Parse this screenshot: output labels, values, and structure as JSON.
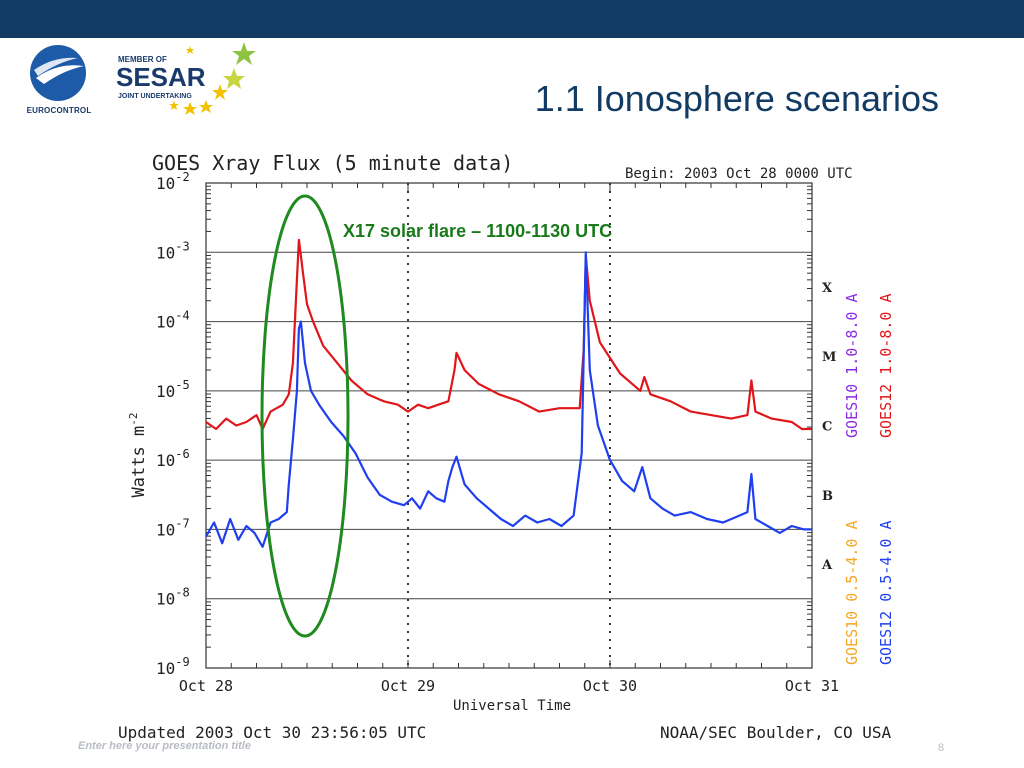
{
  "slide": {
    "title": "1.1 Ionosphere scenarios",
    "footer_left": "Enter here your presentation title",
    "page_number": "8"
  },
  "logos": {
    "eurocontrol": "EUROCONTROL",
    "sesar_member": "MEMBER OF",
    "sesar_name": "SESAR",
    "sesar_sub": "JOINT UNDERTAKING"
  },
  "colors": {
    "header_bar": "#123b63",
    "title": "#123b63",
    "goes12_long": "#e0161b",
    "goes12_short": "#1f3ff0",
    "goes10_long": "#8a2be2",
    "goes10_short": "#f5a623",
    "annotation": "#1a7a1a"
  },
  "chart_data": {
    "type": "line",
    "title": "GOES Xray Flux (5 minute data)",
    "begin_label": "Begin:  2003 Oct 28 0000 UTC",
    "xlabel": "Universal Time",
    "ylabel": "Watts m",
    "ylabel_exp": "-2",
    "x_ticks": [
      "Oct 28",
      "Oct 29",
      "Oct 30",
      "Oct 31"
    ],
    "xlim": [
      0,
      3
    ],
    "ylim_exp": [
      -9,
      -2
    ],
    "y_ticks": [
      {
        "base": "10",
        "exp": "-2"
      },
      {
        "base": "10",
        "exp": "-3"
      },
      {
        "base": "10",
        "exp": "-4"
      },
      {
        "base": "10",
        "exp": "-5"
      },
      {
        "base": "10",
        "exp": "-6"
      },
      {
        "base": "10",
        "exp": "-7"
      },
      {
        "base": "10",
        "exp": "-8"
      },
      {
        "base": "10",
        "exp": "-9"
      }
    ],
    "class_labels": [
      {
        "label": "X",
        "value_exp": -3.5
      },
      {
        "label": "M",
        "value_exp": -4.5
      },
      {
        "label": "C",
        "value_exp": -5.5
      },
      {
        "label": "B",
        "value_exp": -6.5
      },
      {
        "label": "A",
        "value_exp": -7.5
      }
    ],
    "legend_right": [
      "GOES10 1.0-8.0 A",
      "GOES12 1.0-8.0 A"
    ],
    "legend_left_bottom": [
      "GOES10 0.5-4.0 A",
      "GOES12 0.5-4.0 A"
    ],
    "annotation": "X17 solar flare – 1100-1130 UTC",
    "updated": "Updated 2003 Oct 30 23:56:05 UTC",
    "source": "NOAA/SEC Boulder, CO USA",
    "series": [
      {
        "name": "GOES12 1.0-8.0 A",
        "log_values": [
          [
            0.0,
            -5.45
          ],
          [
            0.05,
            -5.55
          ],
          [
            0.1,
            -5.4
          ],
          [
            0.15,
            -5.5
          ],
          [
            0.2,
            -5.45
          ],
          [
            0.25,
            -5.35
          ],
          [
            0.28,
            -5.55
          ],
          [
            0.32,
            -5.3
          ],
          [
            0.38,
            -5.2
          ],
          [
            0.41,
            -5.05
          ],
          [
            0.43,
            -4.6
          ],
          [
            0.44,
            -4.0
          ],
          [
            0.45,
            -3.4
          ],
          [
            0.46,
            -2.82
          ],
          [
            0.48,
            -3.3
          ],
          [
            0.5,
            -3.75
          ],
          [
            0.53,
            -4.0
          ],
          [
            0.58,
            -4.35
          ],
          [
            0.65,
            -4.6
          ],
          [
            0.72,
            -4.85
          ],
          [
            0.8,
            -5.05
          ],
          [
            0.88,
            -5.15
          ],
          [
            0.95,
            -5.2
          ],
          [
            1.0,
            -5.3
          ],
          [
            1.05,
            -5.2
          ],
          [
            1.1,
            -5.25
          ],
          [
            1.15,
            -5.2
          ],
          [
            1.2,
            -5.15
          ],
          [
            1.23,
            -4.7
          ],
          [
            1.24,
            -4.45
          ],
          [
            1.28,
            -4.7
          ],
          [
            1.35,
            -4.9
          ],
          [
            1.45,
            -5.05
          ],
          [
            1.55,
            -5.15
          ],
          [
            1.65,
            -5.3
          ],
          [
            1.75,
            -5.25
          ],
          [
            1.85,
            -5.25
          ],
          [
            1.87,
            -4.4
          ],
          [
            1.88,
            -3.05
          ],
          [
            1.9,
            -3.7
          ],
          [
            1.95,
            -4.3
          ],
          [
            2.05,
            -4.75
          ],
          [
            2.15,
            -5.0
          ],
          [
            2.17,
            -4.8
          ],
          [
            2.2,
            -5.05
          ],
          [
            2.3,
            -5.15
          ],
          [
            2.4,
            -5.3
          ],
          [
            2.5,
            -5.35
          ],
          [
            2.6,
            -5.4
          ],
          [
            2.68,
            -5.35
          ],
          [
            2.7,
            -4.85
          ],
          [
            2.72,
            -5.3
          ],
          [
            2.8,
            -5.4
          ],
          [
            2.9,
            -5.45
          ],
          [
            2.95,
            -5.55
          ],
          [
            3.0,
            -5.55
          ]
        ]
      },
      {
        "name": "GOES12 0.5-4.0 A",
        "log_values": [
          [
            0.0,
            -7.1
          ],
          [
            0.04,
            -6.9
          ],
          [
            0.08,
            -7.2
          ],
          [
            0.12,
            -6.85
          ],
          [
            0.16,
            -7.15
          ],
          [
            0.2,
            -6.95
          ],
          [
            0.24,
            -7.05
          ],
          [
            0.28,
            -7.25
          ],
          [
            0.32,
            -6.9
          ],
          [
            0.36,
            -6.85
          ],
          [
            0.4,
            -6.75
          ],
          [
            0.41,
            -6.35
          ],
          [
            0.43,
            -5.7
          ],
          [
            0.45,
            -5.0
          ],
          [
            0.46,
            -4.1
          ],
          [
            0.47,
            -4.0
          ],
          [
            0.49,
            -4.6
          ],
          [
            0.52,
            -5.0
          ],
          [
            0.56,
            -5.2
          ],
          [
            0.62,
            -5.45
          ],
          [
            0.68,
            -5.65
          ],
          [
            0.74,
            -5.9
          ],
          [
            0.8,
            -6.25
          ],
          [
            0.86,
            -6.5
          ],
          [
            0.92,
            -6.6
          ],
          [
            0.98,
            -6.65
          ],
          [
            1.02,
            -6.55
          ],
          [
            1.06,
            -6.7
          ],
          [
            1.1,
            -6.45
          ],
          [
            1.14,
            -6.55
          ],
          [
            1.18,
            -6.6
          ],
          [
            1.2,
            -6.3
          ],
          [
            1.22,
            -6.1
          ],
          [
            1.24,
            -5.95
          ],
          [
            1.28,
            -6.35
          ],
          [
            1.34,
            -6.55
          ],
          [
            1.4,
            -6.7
          ],
          [
            1.46,
            -6.85
          ],
          [
            1.52,
            -6.95
          ],
          [
            1.58,
            -6.8
          ],
          [
            1.64,
            -6.9
          ],
          [
            1.7,
            -6.85
          ],
          [
            1.76,
            -6.95
          ],
          [
            1.82,
            -6.8
          ],
          [
            1.86,
            -5.9
          ],
          [
            1.88,
            -3.0
          ],
          [
            1.9,
            -4.7
          ],
          [
            1.94,
            -5.5
          ],
          [
            2.0,
            -6.0
          ],
          [
            2.06,
            -6.3
          ],
          [
            2.12,
            -6.45
          ],
          [
            2.16,
            -6.1
          ],
          [
            2.2,
            -6.55
          ],
          [
            2.26,
            -6.7
          ],
          [
            2.32,
            -6.8
          ],
          [
            2.4,
            -6.75
          ],
          [
            2.48,
            -6.85
          ],
          [
            2.56,
            -6.9
          ],
          [
            2.64,
            -6.8
          ],
          [
            2.68,
            -6.75
          ],
          [
            2.7,
            -6.2
          ],
          [
            2.72,
            -6.85
          ],
          [
            2.78,
            -6.95
          ],
          [
            2.84,
            -7.05
          ],
          [
            2.9,
            -6.95
          ],
          [
            2.96,
            -7.0
          ],
          [
            3.0,
            -7.0
          ]
        ]
      }
    ]
  }
}
